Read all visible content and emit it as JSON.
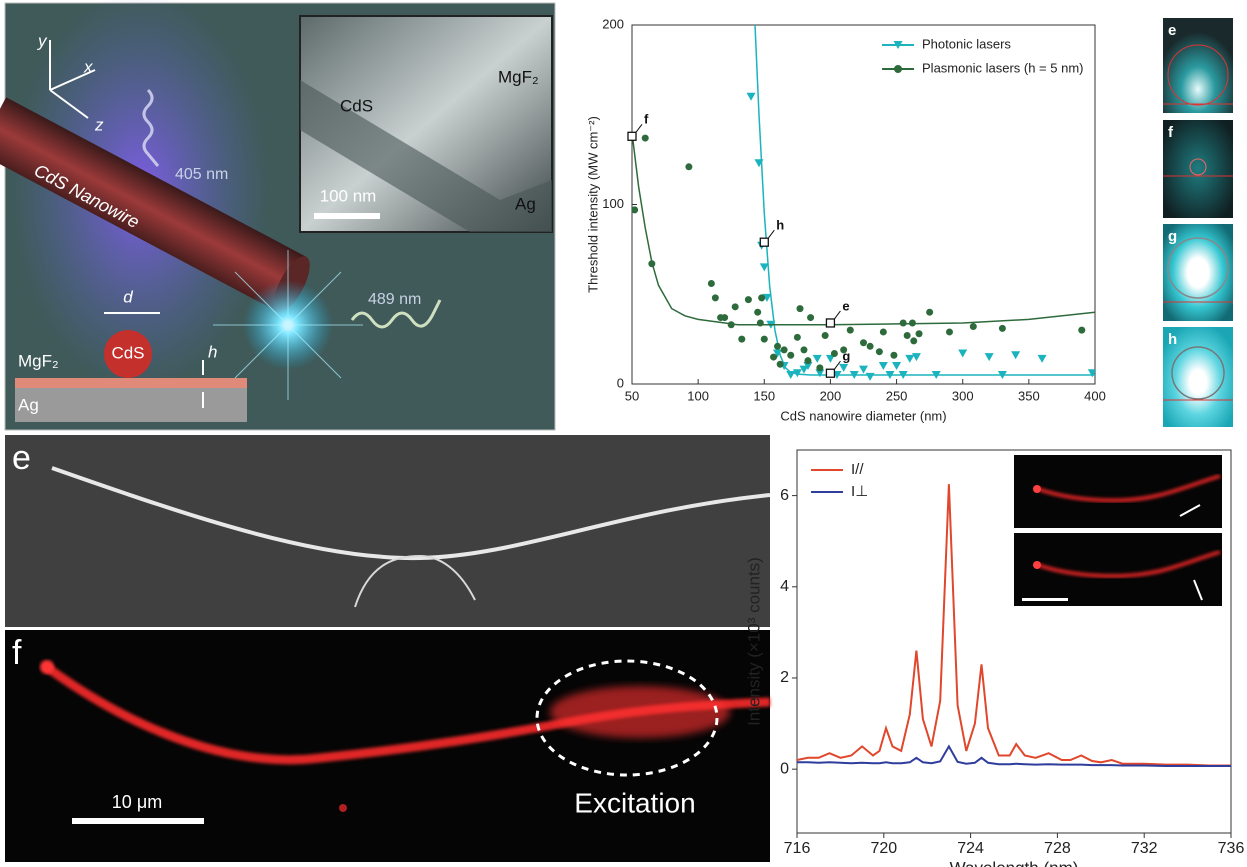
{
  "schematic": {
    "axis_y": "y",
    "axis_x": "x",
    "axis_z": "z",
    "pump": "405 nm",
    "wire": "CdS Nanowire",
    "emission": "489 nm",
    "gap": "d",
    "particle": "CdS",
    "spacer": "h",
    "layer_top": "MgF₂",
    "layer_bottom": "Ag",
    "inset": {
      "wire": "CdS",
      "layer_top": "MgF₂",
      "scale": "100 nm",
      "layer_bottom": "Ag"
    }
  },
  "mode_panels": [
    "e",
    "f",
    "g",
    "h"
  ],
  "micrographs": {
    "sem_letter": "e",
    "fluor_letter": "f",
    "scale": "10 μm",
    "annotation": "Excitation"
  },
  "chart_data": [
    {
      "type": "scatter",
      "x_label": "CdS nanowire diameter (nm)",
      "y_label": "Threshold intensity (MW cm⁻²)",
      "xlim": [
        50,
        400
      ],
      "ylim": [
        0,
        200
      ],
      "xticks": [
        50,
        100,
        150,
        200,
        250,
        300,
        350,
        400
      ],
      "yticks": [
        0,
        100,
        200
      ],
      "grid": false,
      "legend": "upper right",
      "series": [
        {
          "name": "Photonic lasers",
          "color": "#1bb3bd",
          "marker": "triangle-down",
          "x": [
            140,
            146,
            148,
            150,
            152,
            155,
            160,
            165,
            170,
            175,
            180,
            183,
            190,
            192,
            200,
            205,
            210,
            218,
            225,
            230,
            240,
            245,
            250,
            255,
            260,
            265,
            280,
            300,
            320,
            330,
            340,
            360,
            398
          ],
          "values": [
            160,
            123,
            77,
            65,
            48,
            33,
            17,
            10,
            5,
            6,
            8,
            10,
            14,
            6,
            14,
            5,
            9,
            5,
            8,
            4,
            10,
            5,
            10,
            5,
            14,
            15,
            5,
            17,
            15,
            5,
            16,
            14,
            6
          ],
          "fit": {
            "x": [
              143,
              146,
              150,
              154,
              158,
              162,
              166,
              170,
              175,
              185,
              200,
              250,
              300,
              400
            ],
            "values": [
              200,
              150,
              95,
              55,
              30,
              16,
              9,
              6.5,
              5.5,
              5,
              5,
              5,
              5,
              5
            ]
          }
        },
        {
          "name": "Plasmonic lasers (h = 5 nm)",
          "color": "#2e6b3c",
          "marker": "circle",
          "x": [
            52,
            60,
            65,
            93,
            110,
            113,
            117,
            120,
            125,
            128,
            133,
            138,
            145,
            147,
            148,
            150,
            157,
            160,
            162,
            165,
            170,
            175,
            177,
            180,
            183,
            185,
            192,
            196,
            203,
            210,
            215,
            225,
            230,
            237,
            240,
            248,
            255,
            258,
            262,
            263,
            267,
            275,
            290,
            308,
            330,
            390
          ],
          "values": [
            97,
            137,
            67,
            121,
            56,
            48,
            37,
            37,
            33,
            43,
            25,
            47,
            40,
            34,
            48,
            25,
            15,
            21,
            11,
            19,
            16,
            26,
            42,
            19,
            13,
            37,
            9,
            27,
            17,
            19,
            30,
            23,
            21,
            18,
            29,
            16,
            34,
            27,
            34,
            24,
            28,
            40,
            29,
            32,
            31,
            30
          ],
          "fit": {
            "x": [
              50,
              55,
              60,
              65,
              70,
              80,
              90,
              100,
              130,
              200,
              300,
              350,
              400
            ],
            "values": [
              140,
              110,
              87,
              68,
              55,
              42,
              38,
              36,
              33,
              33,
              34,
              36,
              40
            ]
          }
        }
      ],
      "annotations": [
        {
          "text": "f",
          "x": 50,
          "y": 138
        },
        {
          "text": "h",
          "x": 150,
          "y": 79
        },
        {
          "text": "g",
          "x": 200,
          "y": 6
        },
        {
          "text": "e",
          "x": 200,
          "y": 34
        }
      ]
    },
    {
      "type": "line",
      "x_label": "Wavelength (nm)",
      "y_label": "Intensity (×10³ counts)",
      "xlim": [
        716,
        736
      ],
      "ylim": [
        -1.4,
        7
      ],
      "xticks": [
        716,
        720,
        724,
        728,
        732,
        736
      ],
      "yticks": [
        0,
        2,
        4,
        6
      ],
      "grid": false,
      "legend": "upper left",
      "x": [
        716,
        716.5,
        717,
        717.5,
        718,
        718.5,
        719,
        719.5,
        719.8,
        720.1,
        720.4,
        720.8,
        721.2,
        721.5,
        721.8,
        722.2,
        722.6,
        723,
        723.4,
        723.8,
        724.2,
        724.5,
        724.8,
        725.3,
        725.8,
        726.1,
        726.5,
        727,
        727.6,
        728.2,
        728.6,
        729.1,
        729.6,
        730,
        730.5,
        731,
        732,
        733,
        734,
        735,
        736
      ],
      "series": [
        {
          "name": "I//",
          "color": "#e0472c",
          "values": [
            0.2,
            0.25,
            0.25,
            0.35,
            0.25,
            0.3,
            0.5,
            0.3,
            0.4,
            0.9,
            0.5,
            0.4,
            1.2,
            2.6,
            1.1,
            0.5,
            1.5,
            6.25,
            1.4,
            0.4,
            1.0,
            2.3,
            0.9,
            0.3,
            0.3,
            0.55,
            0.3,
            0.25,
            0.35,
            0.2,
            0.2,
            0.3,
            0.18,
            0.15,
            0.2,
            0.12,
            0.12,
            0.1,
            0.1,
            0.08,
            0.08
          ]
        },
        {
          "name": "I⊥",
          "color": "#2f3d9c",
          "values": [
            0.15,
            0.15,
            0.14,
            0.15,
            0.14,
            0.13,
            0.14,
            0.13,
            0.13,
            0.15,
            0.13,
            0.13,
            0.15,
            0.25,
            0.15,
            0.13,
            0.17,
            0.5,
            0.16,
            0.12,
            0.14,
            0.25,
            0.14,
            0.11,
            0.11,
            0.12,
            0.11,
            0.1,
            0.11,
            0.1,
            0.1,
            0.1,
            0.09,
            0.09,
            0.09,
            0.08,
            0.08,
            0.07,
            0.07,
            0.07,
            0.07
          ]
        }
      ]
    }
  ]
}
